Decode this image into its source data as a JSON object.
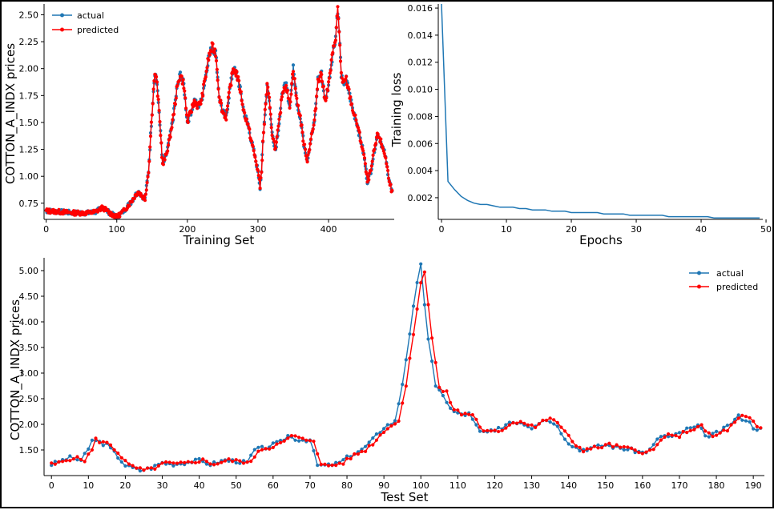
{
  "colors": {
    "actual": "#1f77b4",
    "predicted": "#ff0000",
    "loss": "#1f77b4"
  },
  "chart_data": [
    {
      "type": "line",
      "xlabel": "Training Set",
      "ylabel": "COTTON_A_INDX prices",
      "xlim": [
        -3,
        493
      ],
      "ylim": [
        0.6,
        2.6
      ],
      "xticks": [
        0,
        100,
        200,
        300,
        400
      ],
      "yticks": [
        0.75,
        1.0,
        1.25,
        1.5,
        1.75,
        2.0,
        2.25,
        2.5
      ],
      "legend": "top-left",
      "anchors": {
        "x": [
          0,
          20,
          40,
          60,
          70,
          80,
          90,
          100,
          110,
          120,
          130,
          140,
          145,
          150,
          153,
          155,
          157,
          160,
          163,
          165,
          170,
          175,
          180,
          185,
          190,
          195,
          200,
          205,
          210,
          215,
          220,
          225,
          230,
          235,
          240,
          242,
          245,
          250,
          255,
          260,
          265,
          270,
          275,
          280,
          285,
          290,
          295,
          300,
          303,
          305,
          307,
          310,
          313,
          316,
          320,
          325,
          330,
          335,
          340,
          345,
          350,
          355,
          360,
          365,
          370,
          375,
          380,
          385,
          390,
          395,
          400,
          405,
          410,
          413,
          415,
          418,
          420,
          425,
          430,
          435,
          440,
          445,
          450,
          455,
          460,
          465,
          470,
          475,
          480,
          485,
          490
        ],
        "y": [
          0.68,
          0.67,
          0.66,
          0.66,
          0.67,
          0.71,
          0.66,
          0.62,
          0.68,
          0.76,
          0.86,
          0.79,
          1.05,
          1.6,
          1.9,
          1.95,
          1.85,
          1.6,
          1.3,
          1.1,
          1.2,
          1.35,
          1.55,
          1.8,
          1.95,
          1.85,
          1.5,
          1.6,
          1.7,
          1.65,
          1.7,
          1.9,
          2.1,
          2.2,
          2.15,
          2.0,
          1.75,
          1.6,
          1.55,
          1.8,
          2.0,
          1.95,
          1.8,
          1.6,
          1.5,
          1.35,
          1.2,
          1.05,
          0.9,
          1.05,
          1.3,
          1.6,
          1.85,
          1.7,
          1.4,
          1.25,
          1.5,
          1.8,
          1.85,
          1.65,
          2.0,
          1.7,
          1.55,
          1.3,
          1.15,
          1.35,
          1.5,
          1.9,
          1.95,
          1.7,
          1.85,
          2.1,
          2.3,
          2.55,
          2.35,
          1.95,
          1.85,
          1.9,
          1.75,
          1.6,
          1.5,
          1.35,
          1.2,
          0.95,
          1.05,
          1.25,
          1.4,
          1.3,
          1.2,
          1.0,
          0.85
        ]
      },
      "series": [
        {
          "name": "actual",
          "jitter_seed": 7
        },
        {
          "name": "predicted",
          "jitter_seed": 13
        }
      ]
    },
    {
      "type": "line",
      "xlabel": "Epochs",
      "ylabel": "Training loss",
      "xlim": [
        -0.5,
        49.5
      ],
      "ylim": [
        0.0004,
        0.0163
      ],
      "xticks": [
        0,
        10,
        20,
        30,
        40,
        50
      ],
      "yticks": [
        0.002,
        0.004,
        0.006,
        0.008,
        0.01,
        0.012,
        0.014,
        0.016
      ],
      "ytick_labels": [
        "0.002",
        "0.004",
        "0.006",
        "0.008",
        "0.010",
        "0.012",
        "0.014",
        "0.016"
      ],
      "series": [
        {
          "name": "loss",
          "x": [
            0,
            1,
            2,
            3,
            4,
            5,
            6,
            7,
            8,
            9,
            10,
            11,
            12,
            13,
            14,
            15,
            16,
            17,
            18,
            19,
            20,
            21,
            22,
            23,
            24,
            25,
            26,
            27,
            28,
            29,
            30,
            31,
            32,
            33,
            34,
            35,
            36,
            37,
            38,
            39,
            40,
            41,
            42,
            43,
            44,
            45,
            46,
            47,
            48,
            49
          ],
          "values": [
            0.0163,
            0.0032,
            0.0026,
            0.0021,
            0.0018,
            0.0016,
            0.0015,
            0.0015,
            0.0014,
            0.0013,
            0.0013,
            0.0013,
            0.0012,
            0.0012,
            0.0011,
            0.0011,
            0.0011,
            0.001,
            0.001,
            0.001,
            0.0009,
            0.0009,
            0.0009,
            0.0009,
            0.0009,
            0.0008,
            0.0008,
            0.0008,
            0.0008,
            0.0007,
            0.0007,
            0.0007,
            0.0007,
            0.0007,
            0.0007,
            0.0006,
            0.0006,
            0.0006,
            0.0006,
            0.0006,
            0.0006,
            0.0006,
            0.0005,
            0.0005,
            0.0005,
            0.0005,
            0.0005,
            0.0005,
            0.0005,
            0.0005
          ]
        }
      ]
    },
    {
      "type": "line",
      "xlabel": "Test Set",
      "ylabel": "COTTON_A_INDX prices",
      "xlim": [
        -2,
        193
      ],
      "ylim": [
        1.0,
        5.25
      ],
      "xticks": [
        0,
        10,
        20,
        30,
        40,
        50,
        60,
        70,
        80,
        90,
        100,
        110,
        120,
        130,
        140,
        150,
        160,
        170,
        180,
        190
      ],
      "yticks": [
        1.5,
        2.0,
        2.5,
        3.0,
        3.5,
        4.0,
        4.5,
        5.0
      ],
      "legend": "top-right",
      "anchors": {
        "x": [
          0,
          3,
          5,
          8,
          10,
          11,
          13,
          15,
          17,
          20,
          22,
          24,
          27,
          30,
          33,
          36,
          40,
          43,
          47,
          50,
          53,
          55,
          58,
          62,
          64,
          67,
          70,
          72,
          75,
          78,
          81,
          84,
          87,
          90,
          93,
          95,
          97,
          99,
          100,
          102,
          104,
          106,
          108,
          110,
          113,
          116,
          120,
          124,
          127,
          130,
          133,
          136,
          140,
          143,
          147,
          150,
          153,
          157,
          160,
          162,
          165,
          168,
          172,
          175,
          178,
          182,
          186,
          188,
          190,
          192
        ],
        "y": [
          1.22,
          1.3,
          1.35,
          1.3,
          1.5,
          1.7,
          1.65,
          1.6,
          1.45,
          1.2,
          1.15,
          1.1,
          1.15,
          1.25,
          1.22,
          1.25,
          1.3,
          1.22,
          1.3,
          1.28,
          1.25,
          1.5,
          1.55,
          1.65,
          1.78,
          1.7,
          1.7,
          1.2,
          1.2,
          1.25,
          1.4,
          1.5,
          1.7,
          1.95,
          2.05,
          2.8,
          3.8,
          4.7,
          5.05,
          3.7,
          2.7,
          2.6,
          2.3,
          2.2,
          2.2,
          1.85,
          1.85,
          2.05,
          2.05,
          1.95,
          2.1,
          2.05,
          1.65,
          1.5,
          1.55,
          1.6,
          1.55,
          1.5,
          1.45,
          1.5,
          1.78,
          1.75,
          1.9,
          1.95,
          1.75,
          1.9,
          2.15,
          2.1,
          1.95,
          1.9
        ]
      },
      "series": [
        {
          "name": "actual",
          "jitter_seed": 3
        },
        {
          "name": "predicted",
          "jitter_seed": 5,
          "lag": 1
        }
      ]
    }
  ]
}
